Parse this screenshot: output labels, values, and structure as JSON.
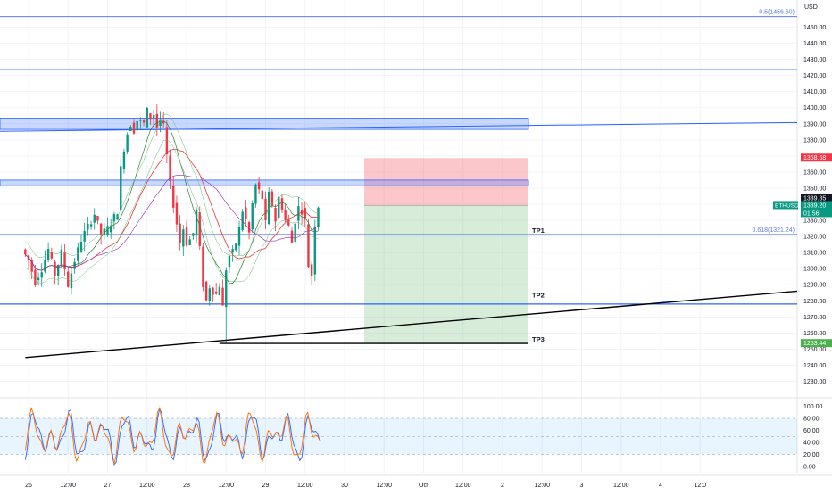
{
  "chart_data": [
    {
      "type": "candlestick",
      "symbol_label": "ETHUSD",
      "currency_label": "USD",
      "ylim": [
        1225,
        1460
      ],
      "y_ticks": [
        "1450.00",
        "1440.00",
        "1430.00",
        "1420.00",
        "1410.00",
        "1400.00",
        "1390.00",
        "1380.00",
        "1370.00",
        "1360.00",
        "1350.00",
        "1340.00",
        "1330.00",
        "1320.00",
        "1310.00",
        "1300.00",
        "1290.00",
        "1280.00",
        "1270.00",
        "1260.00",
        "1250.00",
        "1240.00",
        "1230.00"
      ],
      "x_ticks": [
        "26",
        "12:00",
        "27",
        "12:00",
        "28",
        "12:00",
        "29",
        "12:00",
        "30",
        "12:00",
        "Oct",
        "12:00",
        "2",
        "12:00",
        "3",
        "12:00",
        "4",
        "12:0"
      ],
      "x_tick_values": [
        0,
        12,
        24,
        36,
        48,
        60,
        72,
        84,
        96,
        108,
        120,
        132,
        144,
        156,
        168,
        180,
        192,
        204
      ],
      "price_tags": {
        "stop": "1368.68",
        "last_high": "1339.85",
        "current": "1339.20",
        "countdown": "01:56",
        "target": "1253.44"
      },
      "fib_levels": [
        {
          "label": "0.5(1456.60)",
          "price": 1456.6
        },
        {
          "label": "0.618(1321.24)",
          "price": 1321.24
        }
      ],
      "horizontal_levels": [
        1423.5,
        1278.0
      ],
      "resistance_zones": [
        {
          "from": 1386.5,
          "to": 1393.5
        },
        {
          "from": 1351.5,
          "to": 1355.0
        }
      ],
      "take_profit_labels": [
        {
          "label": "TP1",
          "price": 1321.24
        },
        {
          "label": "TP2",
          "price": 1281.0
        },
        {
          "label": "TP3",
          "price": 1253.44
        }
      ],
      "trade": {
        "entry": 1339.2,
        "stop": 1368.68,
        "target": 1253.44,
        "x_start": 89,
        "x_end": 130
      },
      "trendlines": [
        {
          "x1": -1,
          "y1": 1244.8,
          "x2": 211,
          "y2": 1286
        },
        {
          "x1": 58,
          "y1": 1253.5,
          "x2": 130,
          "y2": 1253.5
        }
      ],
      "ohlc_close_path": [
        [
          -1,
          1312
        ],
        [
          1,
          1305
        ],
        [
          3,
          1292
        ],
        [
          5,
          1300
        ],
        [
          7,
          1312
        ],
        [
          9,
          1296
        ],
        [
          11,
          1310
        ],
        [
          13,
          1290
        ],
        [
          15,
          1305
        ],
        [
          17,
          1318
        ],
        [
          19,
          1326
        ],
        [
          21,
          1334
        ],
        [
          23,
          1321
        ],
        [
          25,
          1325
        ],
        [
          27,
          1332
        ],
        [
          28,
          1336
        ],
        [
          29,
          1362
        ],
        [
          30,
          1375
        ],
        [
          31,
          1384
        ],
        [
          32,
          1390
        ],
        [
          33,
          1386
        ],
        [
          34,
          1392
        ],
        [
          36,
          1390
        ],
        [
          37,
          1398
        ],
        [
          38,
          1394
        ],
        [
          39,
          1396
        ],
        [
          40,
          1388
        ],
        [
          41,
          1392
        ],
        [
          42,
          1388
        ],
        [
          43,
          1370
        ],
        [
          44,
          1352
        ],
        [
          45,
          1340
        ],
        [
          46,
          1328
        ],
        [
          47,
          1316
        ],
        [
          48,
          1325
        ],
        [
          49,
          1316
        ],
        [
          50,
          1318
        ],
        [
          51,
          1322
        ],
        [
          52,
          1336
        ],
        [
          53,
          1312
        ],
        [
          54,
          1290
        ],
        [
          55,
          1280
        ],
        [
          56,
          1289
        ],
        [
          57,
          1286
        ],
        [
          58,
          1284
        ],
        [
          59,
          1290
        ],
        [
          60,
          1276
        ],
        [
          61,
          1300
        ],
        [
          62,
          1308
        ],
        [
          63,
          1310
        ],
        [
          64,
          1316
        ],
        [
          65,
          1325
        ],
        [
          66,
          1336
        ],
        [
          67,
          1330
        ],
        [
          68,
          1322
        ],
        [
          69,
          1340
        ],
        [
          70,
          1352
        ],
        [
          71,
          1348
        ],
        [
          72,
          1344
        ],
        [
          73,
          1328
        ],
        [
          74,
          1346
        ],
        [
          75,
          1340
        ],
        [
          76,
          1330
        ],
        [
          77,
          1344
        ],
        [
          78,
          1338
        ],
        [
          79,
          1330
        ],
        [
          80,
          1326
        ],
        [
          81,
          1316
        ],
        [
          82,
          1330
        ],
        [
          83,
          1338
        ],
        [
          84,
          1336
        ],
        [
          85,
          1330
        ],
        [
          86,
          1302
        ],
        [
          87,
          1296
        ],
        [
          88,
          1328
        ],
        [
          89,
          1339.2
        ]
      ]
    },
    {
      "type": "line",
      "indicator": "stochastic",
      "y_ticks": [
        "100.00",
        "80.00",
        "60.00",
        "40.00",
        "20.00",
        "0.00"
      ],
      "ylim": [
        0,
        100
      ],
      "band": [
        20,
        80
      ],
      "colors": {
        "k": "#2962ff",
        "d": "#ff6d00"
      }
    }
  ],
  "colors": {
    "up": "#089981",
    "down": "#f23645",
    "fib": "#5b7fde",
    "level": "#2962ff",
    "stop_zone": "rgba(242,54,69,0.28)",
    "target_zone": "rgba(76,175,80,0.22)"
  }
}
